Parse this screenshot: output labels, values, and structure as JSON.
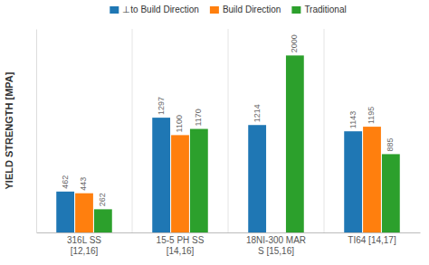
{
  "chart_data": {
    "type": "bar",
    "categories": [
      "316L SS\n[12,16]",
      "15-5 PH SS\n[14,16]",
      "18NI-300 MAR\nS [15,16]",
      "TI64 [14,17]"
    ],
    "series": [
      {
        "name": "⊥to Build Direction",
        "values": [
          462,
          1297,
          1214,
          1143
        ]
      },
      {
        "name": "Build Direction",
        "values": [
          443,
          1100,
          null,
          1195
        ]
      },
      {
        "name": "Traditional",
        "values": [
          262,
          1170,
          2000,
          885
        ]
      }
    ],
    "ylabel": "YIELD STRENGTH [MPA]",
    "ylim": [
      0,
      2300
    ],
    "grid": false,
    "legend": "top",
    "data_labels": true,
    "tick_labels": "x"
  }
}
